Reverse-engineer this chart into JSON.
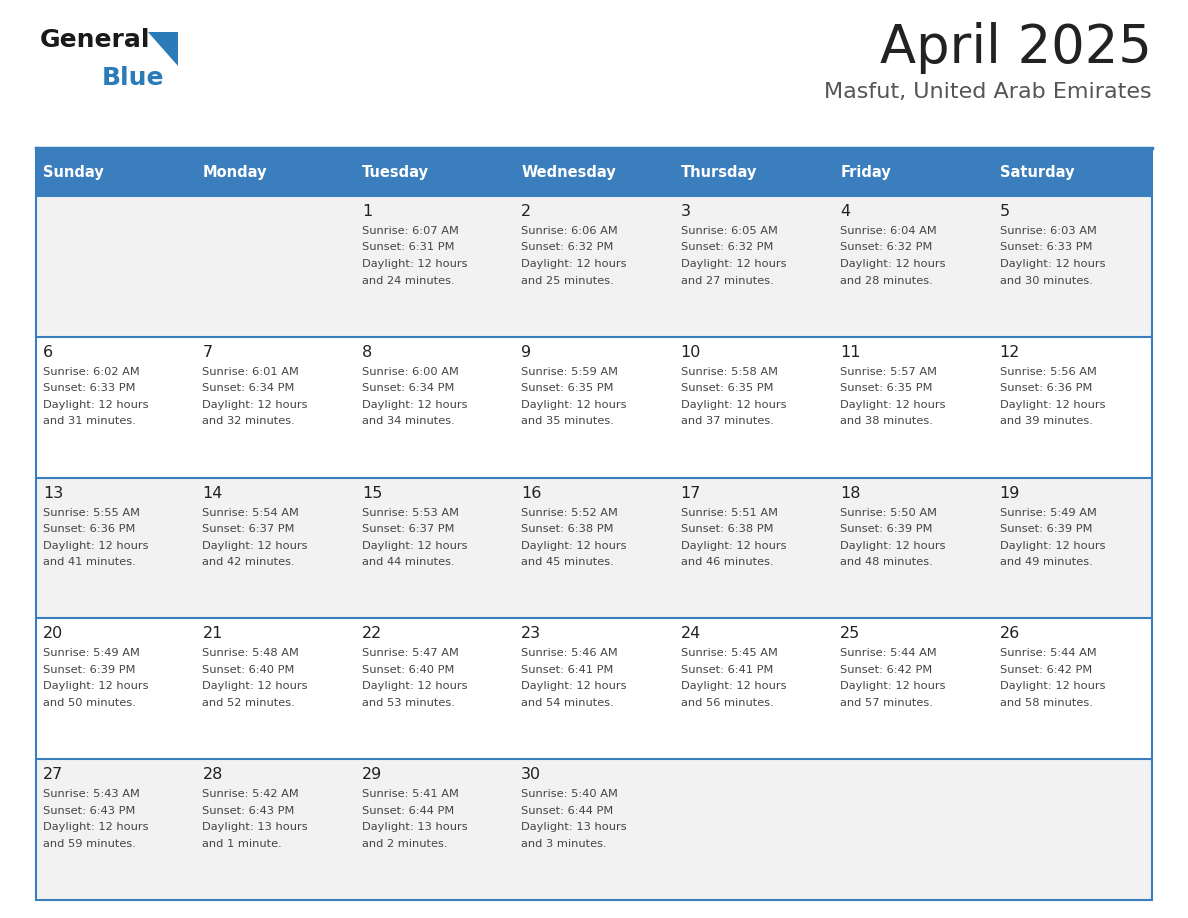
{
  "title": "April 2025",
  "subtitle": "Masfut, United Arab Emirates",
  "days_of_week": [
    "Sunday",
    "Monday",
    "Tuesday",
    "Wednesday",
    "Thursday",
    "Friday",
    "Saturday"
  ],
  "header_bg": "#3A7EBD",
  "header_text": "#FFFFFF",
  "row_bg_light": "#F2F2F2",
  "row_bg_white": "#FFFFFF",
  "border_color": "#3A7EBD",
  "text_color": "#444444",
  "day_num_color": "#222222",
  "title_color": "#222222",
  "subtitle_color": "#555555",
  "logo_text_color": "#1a1a1a",
  "logo_blue_color": "#2B7BB9",
  "calendar_data": [
    [
      {
        "day": null,
        "info": null
      },
      {
        "day": null,
        "info": null
      },
      {
        "day": "1",
        "info": "Sunrise: 6:07 AM\nSunset: 6:31 PM\nDaylight: 12 hours\nand 24 minutes."
      },
      {
        "day": "2",
        "info": "Sunrise: 6:06 AM\nSunset: 6:32 PM\nDaylight: 12 hours\nand 25 minutes."
      },
      {
        "day": "3",
        "info": "Sunrise: 6:05 AM\nSunset: 6:32 PM\nDaylight: 12 hours\nand 27 minutes."
      },
      {
        "day": "4",
        "info": "Sunrise: 6:04 AM\nSunset: 6:32 PM\nDaylight: 12 hours\nand 28 minutes."
      },
      {
        "day": "5",
        "info": "Sunrise: 6:03 AM\nSunset: 6:33 PM\nDaylight: 12 hours\nand 30 minutes."
      }
    ],
    [
      {
        "day": "6",
        "info": "Sunrise: 6:02 AM\nSunset: 6:33 PM\nDaylight: 12 hours\nand 31 minutes."
      },
      {
        "day": "7",
        "info": "Sunrise: 6:01 AM\nSunset: 6:34 PM\nDaylight: 12 hours\nand 32 minutes."
      },
      {
        "day": "8",
        "info": "Sunrise: 6:00 AM\nSunset: 6:34 PM\nDaylight: 12 hours\nand 34 minutes."
      },
      {
        "day": "9",
        "info": "Sunrise: 5:59 AM\nSunset: 6:35 PM\nDaylight: 12 hours\nand 35 minutes."
      },
      {
        "day": "10",
        "info": "Sunrise: 5:58 AM\nSunset: 6:35 PM\nDaylight: 12 hours\nand 37 minutes."
      },
      {
        "day": "11",
        "info": "Sunrise: 5:57 AM\nSunset: 6:35 PM\nDaylight: 12 hours\nand 38 minutes."
      },
      {
        "day": "12",
        "info": "Sunrise: 5:56 AM\nSunset: 6:36 PM\nDaylight: 12 hours\nand 39 minutes."
      }
    ],
    [
      {
        "day": "13",
        "info": "Sunrise: 5:55 AM\nSunset: 6:36 PM\nDaylight: 12 hours\nand 41 minutes."
      },
      {
        "day": "14",
        "info": "Sunrise: 5:54 AM\nSunset: 6:37 PM\nDaylight: 12 hours\nand 42 minutes."
      },
      {
        "day": "15",
        "info": "Sunrise: 5:53 AM\nSunset: 6:37 PM\nDaylight: 12 hours\nand 44 minutes."
      },
      {
        "day": "16",
        "info": "Sunrise: 5:52 AM\nSunset: 6:38 PM\nDaylight: 12 hours\nand 45 minutes."
      },
      {
        "day": "17",
        "info": "Sunrise: 5:51 AM\nSunset: 6:38 PM\nDaylight: 12 hours\nand 46 minutes."
      },
      {
        "day": "18",
        "info": "Sunrise: 5:50 AM\nSunset: 6:39 PM\nDaylight: 12 hours\nand 48 minutes."
      },
      {
        "day": "19",
        "info": "Sunrise: 5:49 AM\nSunset: 6:39 PM\nDaylight: 12 hours\nand 49 minutes."
      }
    ],
    [
      {
        "day": "20",
        "info": "Sunrise: 5:49 AM\nSunset: 6:39 PM\nDaylight: 12 hours\nand 50 minutes."
      },
      {
        "day": "21",
        "info": "Sunrise: 5:48 AM\nSunset: 6:40 PM\nDaylight: 12 hours\nand 52 minutes."
      },
      {
        "day": "22",
        "info": "Sunrise: 5:47 AM\nSunset: 6:40 PM\nDaylight: 12 hours\nand 53 minutes."
      },
      {
        "day": "23",
        "info": "Sunrise: 5:46 AM\nSunset: 6:41 PM\nDaylight: 12 hours\nand 54 minutes."
      },
      {
        "day": "24",
        "info": "Sunrise: 5:45 AM\nSunset: 6:41 PM\nDaylight: 12 hours\nand 56 minutes."
      },
      {
        "day": "25",
        "info": "Sunrise: 5:44 AM\nSunset: 6:42 PM\nDaylight: 12 hours\nand 57 minutes."
      },
      {
        "day": "26",
        "info": "Sunrise: 5:44 AM\nSunset: 6:42 PM\nDaylight: 12 hours\nand 58 minutes."
      }
    ],
    [
      {
        "day": "27",
        "info": "Sunrise: 5:43 AM\nSunset: 6:43 PM\nDaylight: 12 hours\nand 59 minutes."
      },
      {
        "day": "28",
        "info": "Sunrise: 5:42 AM\nSunset: 6:43 PM\nDaylight: 13 hours\nand 1 minute."
      },
      {
        "day": "29",
        "info": "Sunrise: 5:41 AM\nSunset: 6:44 PM\nDaylight: 13 hours\nand 2 minutes."
      },
      {
        "day": "30",
        "info": "Sunrise: 5:40 AM\nSunset: 6:44 PM\nDaylight: 13 hours\nand 3 minutes."
      },
      {
        "day": null,
        "info": null
      },
      {
        "day": null,
        "info": null
      },
      {
        "day": null,
        "info": null
      }
    ]
  ]
}
